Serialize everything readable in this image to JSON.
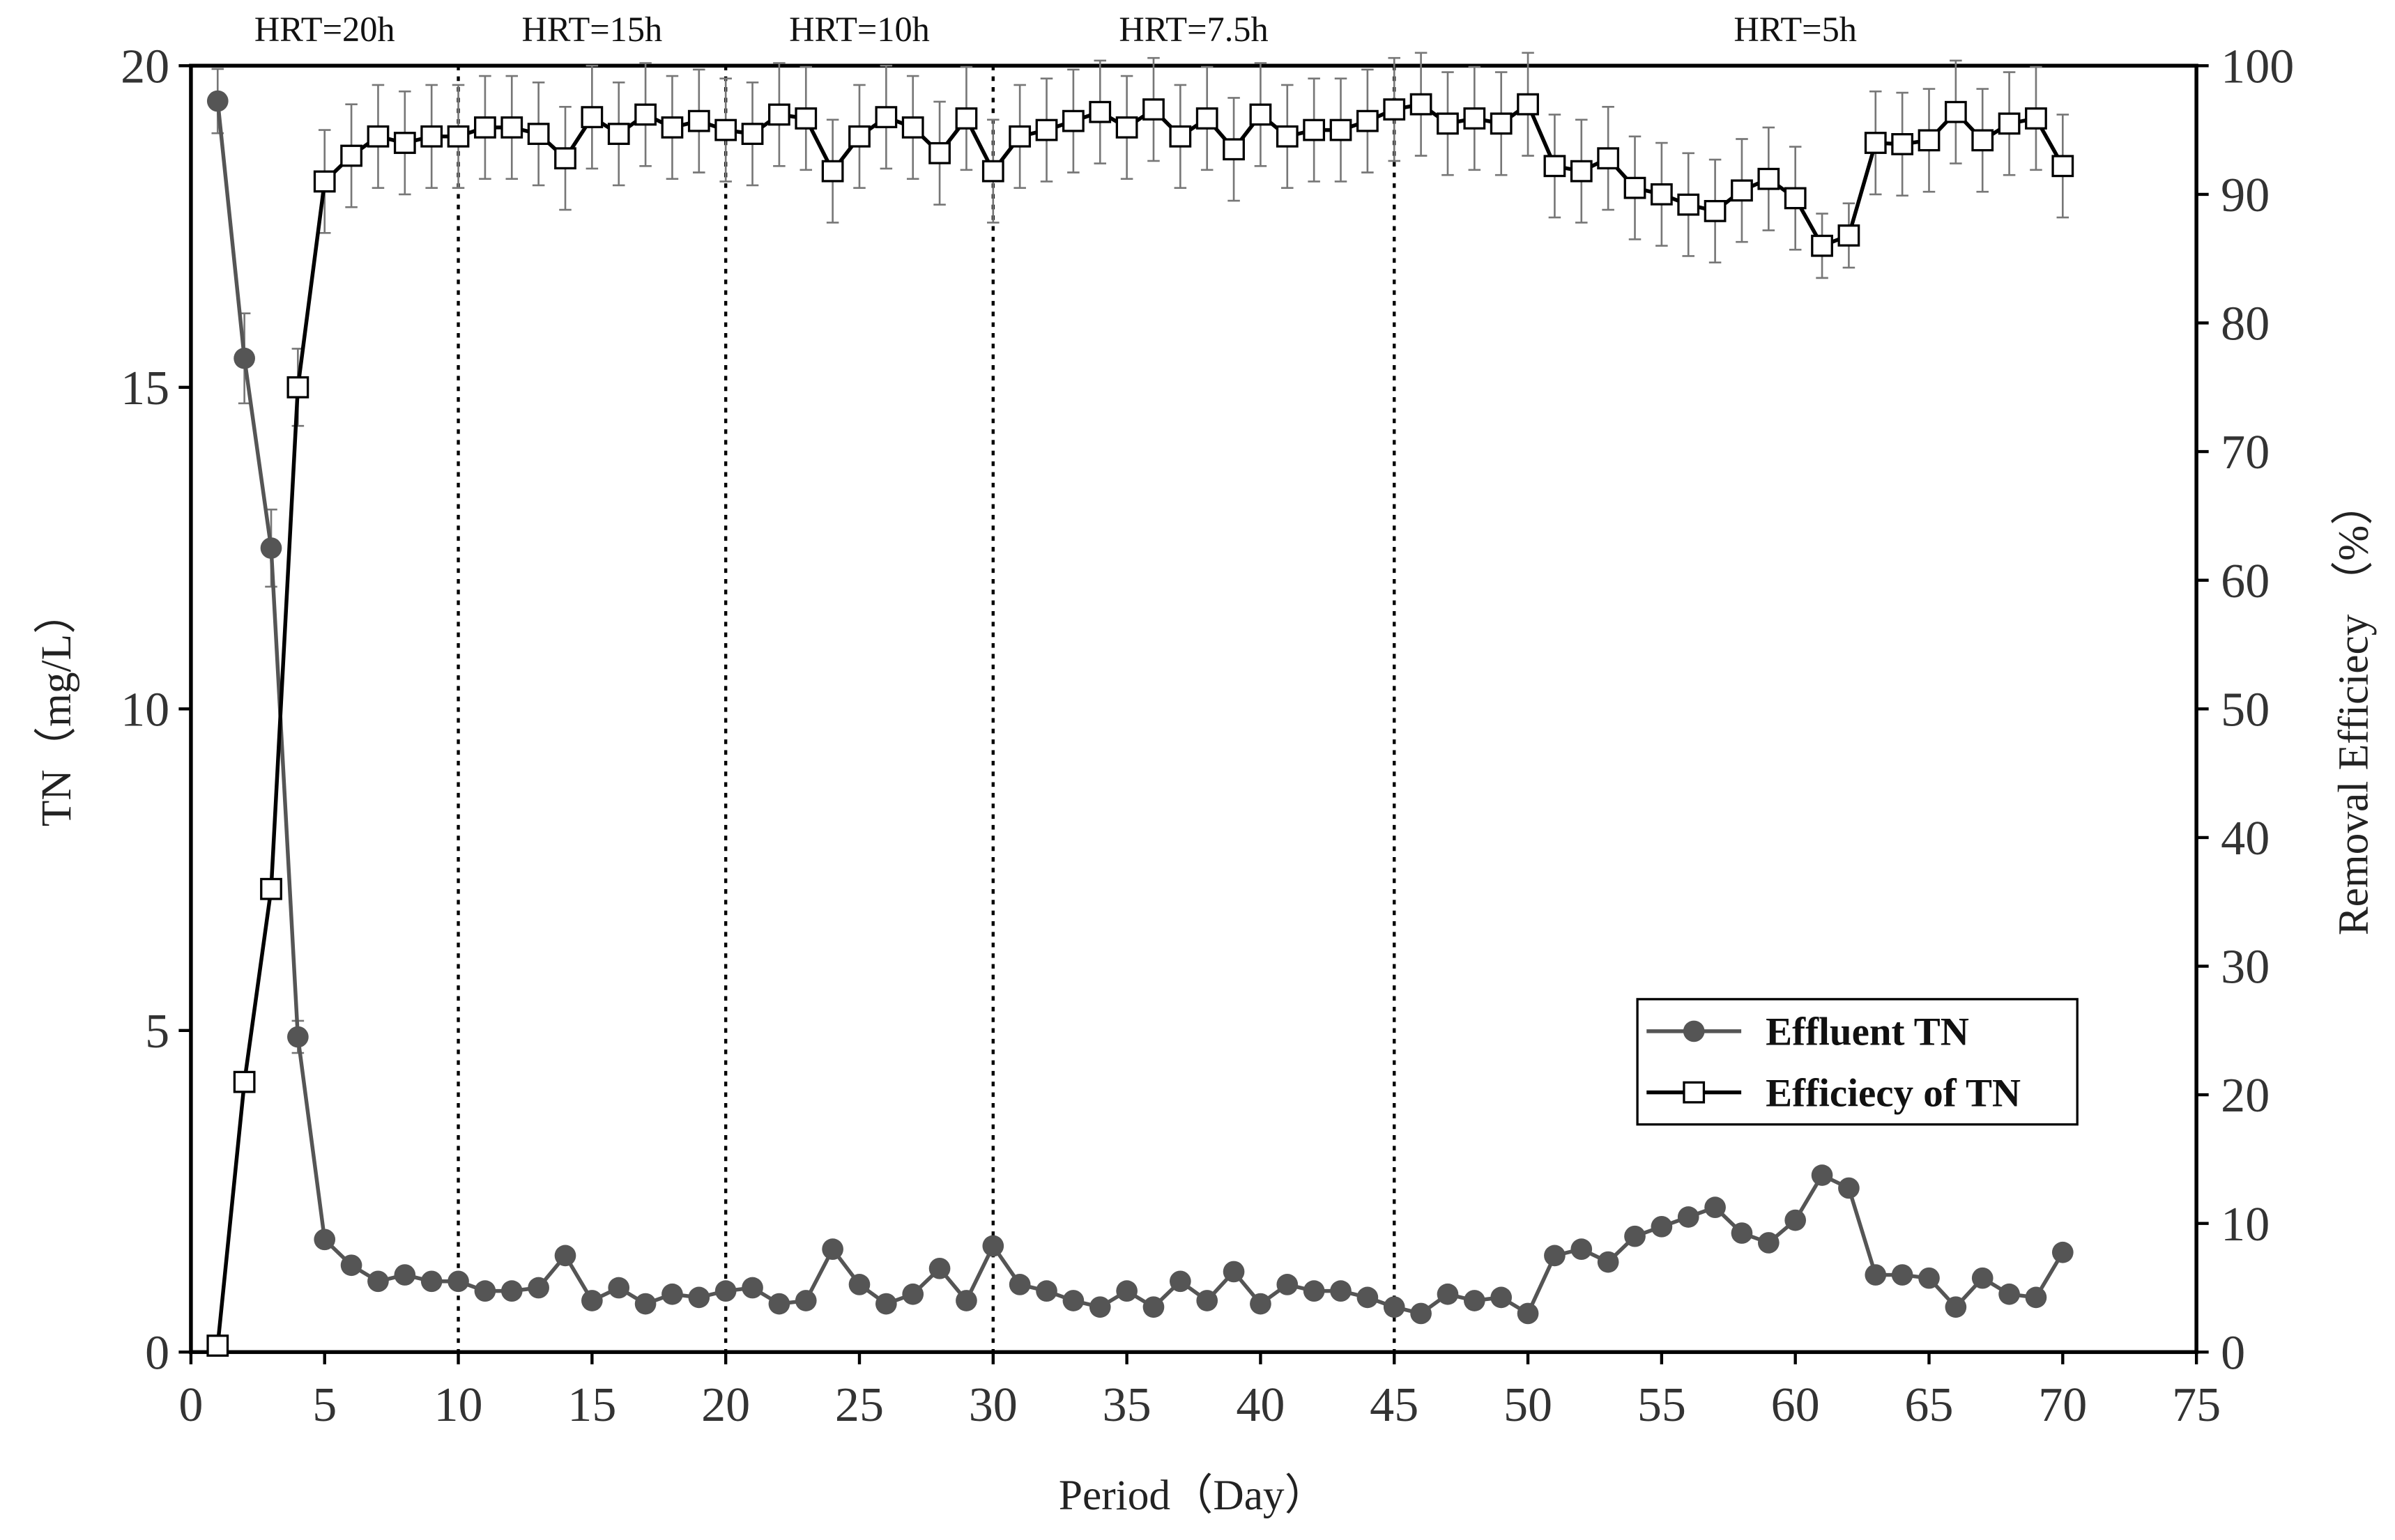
{
  "chart_data": {
    "type": "line",
    "x_label": "Period（Day）",
    "y_label": "TN（mg/L）",
    "y2_label": "Removal Efficiecy （%）",
    "x": [
      1,
      2,
      3,
      4,
      5,
      6,
      7,
      8,
      9,
      10,
      11,
      12,
      13,
      14,
      15,
      16,
      17,
      18,
      19,
      20,
      21,
      22,
      23,
      24,
      25,
      26,
      27,
      28,
      29,
      30,
      31,
      32,
      33,
      34,
      35,
      36,
      37,
      38,
      39,
      40,
      41,
      42,
      43,
      44,
      45,
      46,
      47,
      48,
      49,
      50,
      51,
      52,
      53,
      54,
      55,
      56,
      57,
      58,
      59,
      60,
      61,
      62,
      63,
      64,
      65,
      66,
      67,
      68,
      69,
      70
    ],
    "series": [
      {
        "name": "Effluent TN",
        "color": "#555555",
        "marker": "circle",
        "values": [
          19.45,
          15.45,
          12.5,
          4.9,
          1.75,
          1.35,
          1.1,
          1.2,
          1.1,
          1.1,
          0.95,
          0.95,
          1.0,
          1.5,
          0.8,
          1.0,
          0.75,
          0.9,
          0.85,
          0.95,
          1.0,
          0.75,
          0.8,
          1.6,
          1.05,
          0.75,
          0.9,
          1.3,
          0.8,
          1.65,
          1.05,
          0.95,
          0.8,
          0.7,
          0.95,
          0.7,
          1.1,
          0.8,
          1.25,
          0.75,
          1.05,
          0.95,
          0.95,
          0.85,
          0.7,
          0.6,
          0.9,
          0.8,
          0.85,
          0.6,
          1.5,
          1.6,
          1.4,
          1.8,
          1.95,
          2.1,
          2.25,
          1.85,
          1.7,
          2.05,
          2.75,
          2.55,
          1.2,
          1.2,
          1.15,
          0.7,
          1.15,
          0.9,
          0.85,
          1.55
        ],
        "errors": [
          0.5,
          0.7,
          0.6,
          0.25,
          null,
          null,
          null,
          null,
          null,
          null,
          null,
          null,
          null,
          null,
          null,
          null,
          null,
          null,
          null,
          null,
          null,
          null,
          null,
          null,
          null,
          null,
          null,
          null,
          null,
          null,
          null,
          null,
          null,
          null,
          null,
          null,
          null,
          null,
          null,
          null,
          null,
          null,
          null,
          null,
          null,
          null,
          null,
          null,
          null,
          null,
          null,
          null,
          null,
          null,
          null,
          null,
          null,
          null,
          null,
          null,
          null,
          null,
          null,
          null,
          null,
          null,
          null,
          null,
          null,
          null
        ]
      },
      {
        "name": "Efficiecy of TN",
        "color": "#000000",
        "marker": "square",
        "axis": "y2",
        "values": [
          0.5,
          21,
          36,
          75,
          91,
          93,
          94.5,
          94,
          94.5,
          94.5,
          95.2,
          95.2,
          94.7,
          92.8,
          96,
          94.7,
          96.2,
          95.2,
          95.7,
          95,
          94.7,
          96.2,
          95.9,
          91.8,
          94.5,
          96,
          95.2,
          93.2,
          95.9,
          91.8,
          94.5,
          95,
          95.7,
          96.4,
          95.2,
          96.6,
          94.5,
          95.9,
          93.5,
          96.2,
          94.5,
          95,
          95,
          95.7,
          96.6,
          97,
          95.5,
          95.9,
          95.5,
          97,
          92.2,
          91.8,
          92.8,
          90.5,
          90,
          89.2,
          88.7,
          90.3,
          91.2,
          89.7,
          86,
          86.8,
          94,
          93.9,
          94.2,
          96.4,
          94.2,
          95.5,
          95.9,
          92.2
        ],
        "errors": [
          null,
          null,
          null,
          3,
          4,
          4,
          4,
          4,
          4,
          4,
          4,
          4,
          4,
          4,
          4,
          4,
          4,
          4,
          4,
          4,
          4,
          4,
          4,
          4,
          4,
          4,
          4,
          4,
          4,
          4,
          4,
          4,
          4,
          4,
          4,
          4,
          4,
          4,
          4,
          4,
          4,
          4,
          4,
          4,
          4,
          4,
          4,
          4,
          4,
          4,
          4,
          4,
          4,
          4,
          4,
          4,
          4,
          4,
          4,
          4,
          2.5,
          2.5,
          4,
          4,
          4,
          4,
          4,
          4,
          4,
          4
        ]
      }
    ],
    "phases": [
      {
        "label": "HRT=20h",
        "start": 0,
        "end": 10
      },
      {
        "label": "HRT=15h",
        "start": 10,
        "end": 20
      },
      {
        "label": "HRT=10h",
        "start": 20,
        "end": 30
      },
      {
        "label": "HRT=7.5h",
        "start": 30,
        "end": 45
      },
      {
        "label": "HRT=5h",
        "start": 45,
        "end": 75
      }
    ],
    "xlim": [
      0,
      75
    ],
    "xticks": [
      0,
      5,
      10,
      15,
      20,
      25,
      30,
      35,
      40,
      45,
      50,
      55,
      60,
      65,
      70,
      75
    ],
    "ylim": [
      0,
      20
    ],
    "yticks": [
      0,
      5,
      10,
      15,
      20
    ],
    "y2lim": [
      0,
      100
    ],
    "y2ticks": [
      0,
      10,
      20,
      30,
      40,
      50,
      60,
      70,
      80,
      90,
      100
    ],
    "legend": "lower right"
  }
}
